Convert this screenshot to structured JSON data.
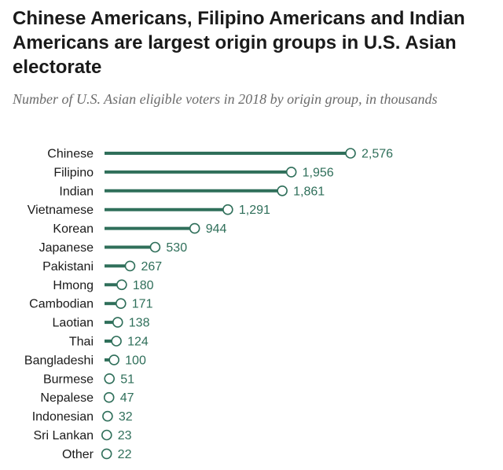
{
  "title": "Chinese Americans, Filipino Americans and Indian Americans are largest origin groups in U.S. Asian electorate",
  "subtitle": "Number of U.S. Asian eligible voters in 2018 by origin group, in thousands",
  "colors": {
    "bar": "#2f6f5a",
    "marker_fill": "#ffffff",
    "value_text": "#2f6f5a",
    "label_text": "#1a1a1a"
  },
  "chart_data": {
    "type": "bar",
    "orientation": "horizontal",
    "style": "lollipop",
    "categories": [
      "Chinese",
      "Filipino",
      "Indian",
      "Vietnamese",
      "Korean",
      "Japanese",
      "Pakistani",
      "Hmong",
      "Cambodian",
      "Laotian",
      "Thai",
      "Bangladeshi",
      "Burmese",
      "Nepalese",
      "Indonesian",
      "Sri Lankan",
      "Other"
    ],
    "values": [
      2576,
      1956,
      1861,
      1291,
      944,
      530,
      267,
      180,
      171,
      138,
      124,
      100,
      51,
      47,
      32,
      23,
      22
    ],
    "value_labels": [
      "2,576",
      "1,956",
      "1,861",
      "1,291",
      "944",
      "530",
      "267",
      "180",
      "171",
      "138",
      "124",
      "100",
      "51",
      "47",
      "32",
      "23",
      "22"
    ],
    "xlim": [
      0,
      2576
    ],
    "grid": false,
    "legend": "none"
  }
}
